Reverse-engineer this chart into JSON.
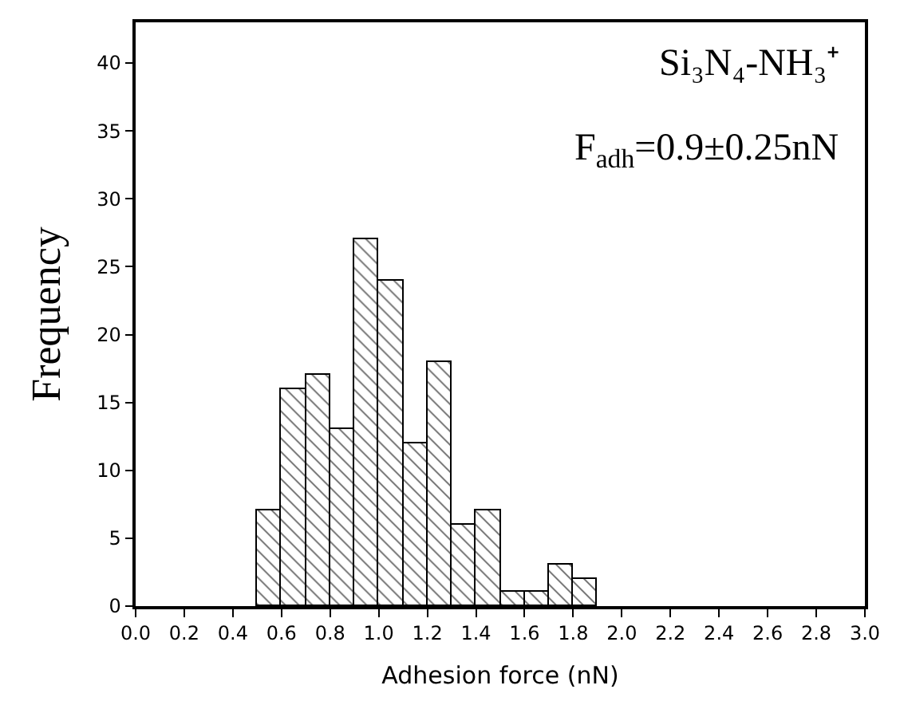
{
  "chart_data": {
    "type": "histogram",
    "xlabel": "Adhesion force (nN)",
    "ylabel": "Frequency",
    "bins": [
      0.5,
      0.6,
      0.7,
      0.8,
      0.9,
      1.0,
      1.1,
      1.2,
      1.3,
      1.4,
      1.5,
      1.6,
      1.7,
      1.8,
      1.9
    ],
    "values": [
      7,
      16,
      17,
      13,
      27,
      24,
      12,
      18,
      6,
      7,
      1,
      1,
      3,
      2
    ],
    "color": "#000000",
    "xlim": [
      0,
      3
    ],
    "xticks": [
      {
        "value": 0,
        "label": "0.0"
      },
      0.2,
      0.4,
      0.6,
      0.8,
      {
        "value": 1,
        "label": "1.0"
      },
      1.2,
      1.4,
      1.6,
      1.8,
      {
        "value": 2,
        "label": "2.0"
      },
      2.2,
      2.4,
      2.6,
      2.8,
      {
        "value": 3,
        "label": "3.0"
      }
    ],
    "ylim": [
      0,
      43
    ],
    "yticks": [
      0,
      5,
      10,
      15,
      20,
      25,
      30,
      35,
      40
    ],
    "annotations": [
      "Si₃N₄-NH₃⁺",
      "F$_{adh}$=0.9±0.25nN"
    ]
  }
}
